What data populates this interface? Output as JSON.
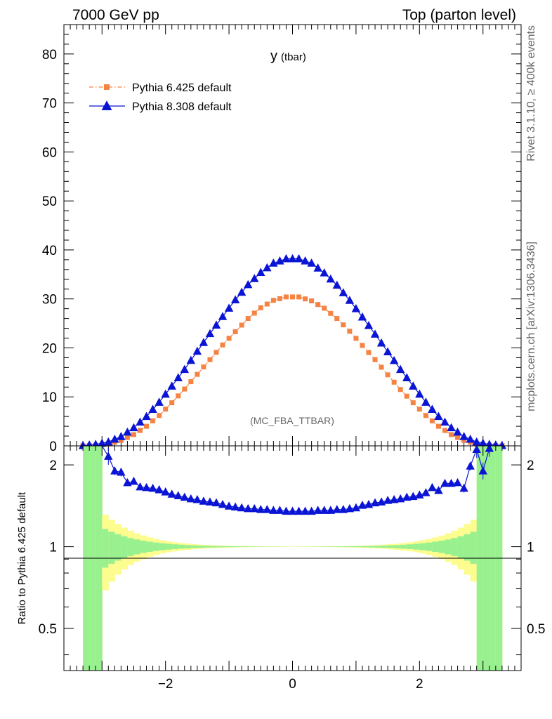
{
  "header": {
    "left": "7000 GeV pp",
    "right": "Top (parton level)"
  },
  "side_labels": {
    "rivet": "Rivet 3.1.10, ≥ 400k events",
    "source": "mcplots.cern.ch [arXiv:1306.3436]"
  },
  "chart_data": [
    {
      "type": "line",
      "title": "y",
      "title_sub": "(tbar)",
      "annotation": "(MC_FBA_TTBAR)",
      "xlabel": "",
      "ylabel": "",
      "xlim": [
        -3.6,
        3.6
      ],
      "ylim": [
        0,
        86
      ],
      "yticks": [
        "0",
        "10",
        "20",
        "30",
        "40",
        "50",
        "60",
        "70",
        "80"
      ],
      "legend_position": "top-left",
      "series": [
        {
          "name": "Pythia 6.425 default",
          "color": "#f58342",
          "marker": "square",
          "line": "dash-dot",
          "x": [
            -3.3,
            -3.1,
            -2.9,
            -2.7,
            -2.5,
            -2.3,
            -2.1,
            -1.9,
            -1.7,
            -1.5,
            -1.3,
            -1.1,
            -0.9,
            -0.7,
            -0.5,
            -0.3,
            -0.1,
            0.1,
            0.3,
            0.5,
            0.7,
            0.9,
            1.1,
            1.3,
            1.5,
            1.7,
            1.9,
            2.1,
            2.3,
            2.5,
            2.7,
            2.9,
            3.1,
            3.3
          ],
          "y": [
            0.02,
            0.1,
            0.4,
            1.1,
            2.3,
            4.0,
            6.2,
            8.8,
            11.6,
            14.6,
            17.6,
            20.6,
            23.3,
            26.0,
            28.2,
            29.7,
            30.4,
            30.4,
            29.6,
            28.1,
            26.0,
            23.4,
            20.5,
            17.6,
            14.5,
            11.5,
            8.8,
            6.2,
            4.0,
            2.3,
            1.1,
            0.4,
            0.1,
            0.02
          ]
        },
        {
          "name": "Pythia 8.308 default",
          "color": "#0a14d4",
          "marker": "triangle",
          "line": "solid",
          "x": [
            -3.3,
            -3.1,
            -2.9,
            -2.7,
            -2.5,
            -2.3,
            -2.1,
            -1.9,
            -1.7,
            -1.5,
            -1.3,
            -1.1,
            -0.9,
            -0.7,
            -0.5,
            -0.3,
            -0.1,
            0.1,
            0.3,
            0.5,
            0.7,
            0.9,
            1.1,
            1.3,
            1.5,
            1.7,
            1.9,
            2.1,
            2.3,
            2.5,
            2.7,
            2.9,
            3.1,
            3.3
          ],
          "y": [
            0.05,
            0.3,
            0.8,
            1.9,
            3.7,
            6.0,
            8.9,
            12.2,
            15.6,
            19.3,
            22.9,
            26.4,
            29.8,
            32.9,
            35.4,
            37.3,
            38.2,
            38.2,
            37.3,
            35.3,
            32.8,
            29.7,
            26.3,
            22.8,
            19.2,
            15.6,
            12.2,
            8.9,
            6.0,
            3.7,
            1.9,
            0.8,
            0.3,
            0.05
          ]
        }
      ]
    },
    {
      "type": "line",
      "ylabel": "Ratio to Pythia 6.425 default",
      "xlim": [
        -3.6,
        3.6
      ],
      "ylim": [
        0.35,
        2.35
      ],
      "xticks": [
        "−2",
        "0",
        "2"
      ],
      "yticks_left": [
        "0.5",
        "1",
        "2"
      ],
      "yticks_right": [
        "0.5",
        "1",
        "2"
      ],
      "bands": {
        "inner_color": "#99f08f",
        "outer_color": "#fcfc8f"
      },
      "series": [
        {
          "name": "Pythia 8.308 default",
          "color": "#0a14d4",
          "marker": "triangle",
          "x": [
            -2.9,
            -2.8,
            -2.7,
            -2.6,
            -2.5,
            -2.4,
            -2.3,
            -2.2,
            -2.1,
            -2.0,
            -1.9,
            -1.8,
            -1.7,
            -1.6,
            -1.5,
            -1.4,
            -1.3,
            -1.2,
            -1.1,
            -1.0,
            -0.9,
            -0.8,
            -0.7,
            -0.6,
            -0.5,
            -0.4,
            -0.3,
            -0.2,
            -0.1,
            0.0,
            0.1,
            0.2,
            0.3,
            0.4,
            0.5,
            0.6,
            0.7,
            0.8,
            0.9,
            1.0,
            1.1,
            1.2,
            1.3,
            1.4,
            1.5,
            1.6,
            1.7,
            1.8,
            1.9,
            2.0,
            2.1,
            2.2,
            2.3,
            2.4,
            2.5,
            2.6,
            2.7,
            2.8,
            2.9,
            3.0,
            3.1
          ],
          "y": [
            2.15,
            1.9,
            1.88,
            1.72,
            1.74,
            1.66,
            1.65,
            1.64,
            1.62,
            1.59,
            1.56,
            1.54,
            1.52,
            1.5,
            1.49,
            1.47,
            1.46,
            1.45,
            1.43,
            1.41,
            1.4,
            1.39,
            1.38,
            1.38,
            1.37,
            1.37,
            1.36,
            1.36,
            1.35,
            1.35,
            1.35,
            1.35,
            1.35,
            1.36,
            1.36,
            1.36,
            1.37,
            1.37,
            1.38,
            1.39,
            1.42,
            1.43,
            1.45,
            1.46,
            1.48,
            1.49,
            1.5,
            1.52,
            1.53,
            1.55,
            1.58,
            1.65,
            1.61,
            1.71,
            1.71,
            1.72,
            1.64,
            1.98,
            2.28,
            1.9,
            2.3
          ]
        }
      ]
    }
  ]
}
